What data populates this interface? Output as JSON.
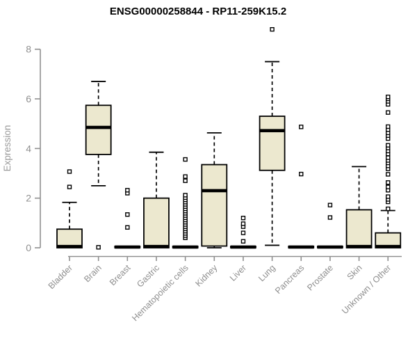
{
  "window": {
    "title": "ENSG00000258844 - RP11-259K15.2"
  },
  "chart_data": {
    "type": "boxplot",
    "title": "ENSG00000258844 - RP11-259K15.2",
    "xlabel": "",
    "ylabel": "Expression",
    "ylim": [
      0,
      8.9
    ],
    "yticks": [
      0,
      2,
      4,
      6,
      8
    ],
    "grid": false,
    "legend": "none",
    "colors": {
      "box_fill": "#ece8cf",
      "box_border": "#000000",
      "median": "#000000",
      "axis": "#8f8f8f",
      "tick_text": "#8f8f8f",
      "title_text": "#000000",
      "outlier_fill": "#ffffff",
      "outlier_border": "#000000"
    },
    "categories": [
      "Bladder",
      "Brain",
      "Breast",
      "Gastric",
      "Hematopoietic cells",
      "Kidney",
      "Liver",
      "Lung",
      "Pancreas",
      "Prostate",
      "Skin",
      "Unknown / Other"
    ],
    "series": [
      {
        "name": "Bladder",
        "q1": 0,
        "median": 0.05,
        "q3": 0.75,
        "whisker_low": 0,
        "whisker_high": 1.83,
        "outliers": [
          2.45,
          3.07
        ]
      },
      {
        "name": "Brain",
        "q1": 3.76,
        "median": 4.85,
        "q3": 5.74,
        "whisker_low": 2.5,
        "whisker_high": 6.7,
        "outliers": [
          0.02
        ]
      },
      {
        "name": "Breast",
        "q1": 0,
        "median": 0.03,
        "q3": 0.06,
        "whisker_low": 0,
        "whisker_high": 0.06,
        "outliers": [
          0.82,
          1.34,
          2.2,
          2.32
        ]
      },
      {
        "name": "Gastric",
        "q1": 0,
        "median": 0.05,
        "q3": 2.0,
        "whisker_low": 0,
        "whisker_high": 3.85,
        "outliers": []
      },
      {
        "name": "Hematopoietic cells",
        "q1": 0,
        "median": 0.03,
        "q3": 0.06,
        "whisker_low": 0,
        "whisker_high": 0.06,
        "outliers": [
          0.4,
          0.49,
          0.58,
          0.67,
          0.76,
          0.85,
          0.94,
          1.03,
          1.12,
          1.21,
          1.3,
          1.39,
          1.48,
          1.57,
          1.66,
          1.75,
          1.84,
          1.93,
          2.02,
          2.12,
          2.7,
          2.87,
          3.56
        ]
      },
      {
        "name": "Kidney",
        "q1": 0.07,
        "median": 2.3,
        "q3": 3.35,
        "whisker_low": 0,
        "whisker_high": 4.63,
        "outliers": []
      },
      {
        "name": "Liver",
        "q1": 0,
        "median": 0.03,
        "q3": 0.06,
        "whisker_low": 0,
        "whisker_high": 0.06,
        "outliers": [
          0.26,
          0.6,
          0.85,
          0.97,
          1.2
        ]
      },
      {
        "name": "Lung",
        "q1": 3.12,
        "median": 4.72,
        "q3": 5.3,
        "whisker_low": 0.1,
        "whisker_high": 7.5,
        "outliers": [
          8.8
        ]
      },
      {
        "name": "Pancreas",
        "q1": 0,
        "median": 0.03,
        "q3": 0.06,
        "whisker_low": 0,
        "whisker_high": 0.06,
        "outliers": [
          2.97,
          4.87
        ]
      },
      {
        "name": "Prostate",
        "q1": 0,
        "median": 0.03,
        "q3": 0.06,
        "whisker_low": 0,
        "whisker_high": 0.06,
        "outliers": [
          1.22,
          1.72
        ]
      },
      {
        "name": "Skin",
        "q1": 0,
        "median": 0.05,
        "q3": 1.53,
        "whisker_low": 0,
        "whisker_high": 3.27,
        "outliers": []
      },
      {
        "name": "Unknown / Other",
        "q1": 0,
        "median": 0.05,
        "q3": 0.6,
        "whisker_low": 0,
        "whisker_high": 1.5,
        "outliers": [
          1.57,
          1.85,
          1.95,
          2.06,
          2.32,
          2.45,
          2.63,
          2.96,
          3.18,
          3.3,
          3.42,
          3.52,
          3.63,
          3.78,
          3.9,
          4.02,
          4.13,
          4.4,
          4.52,
          4.63,
          4.76,
          4.88,
          5.45,
          5.78,
          5.9,
          6.0,
          6.08
        ]
      }
    ]
  }
}
